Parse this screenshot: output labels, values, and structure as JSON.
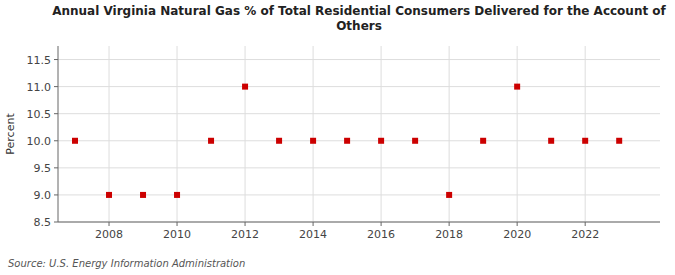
{
  "chart_data": {
    "type": "scatter",
    "title": "Annual Virginia Natural Gas % of Total Residential Consumers Delivered for the Account of\nOthers",
    "y_label": "Percent",
    "annotations": [
      "Source: U.S. Energy Information Administration"
    ],
    "x": [
      2007,
      2008,
      2009,
      2010,
      2011,
      2012,
      2013,
      2014,
      2015,
      2016,
      2017,
      2018,
      2019,
      2020,
      2021,
      2022,
      2023
    ],
    "values": [
      10.0,
      9.0,
      9.0,
      9.0,
      10.0,
      11.0,
      10.0,
      10.0,
      10.0,
      10.0,
      10.0,
      9.0,
      10.0,
      11.0,
      10.0,
      10.0,
      10.0
    ],
    "xlim": [
      2006.5,
      2024.2
    ],
    "ylim": [
      8.5,
      11.75
    ],
    "xticks": [
      2008,
      2010,
      2012,
      2014,
      2016,
      2018,
      2020,
      2022
    ],
    "yticks": [
      8.5,
      {
        "value": 9,
        "label": "9.0"
      },
      9.5,
      {
        "value": 10,
        "label": "10.0"
      },
      10.5,
      {
        "value": 11,
        "label": "11.0"
      },
      11.5
    ],
    "color": "#cc0000",
    "marker": "square",
    "grid": true
  }
}
